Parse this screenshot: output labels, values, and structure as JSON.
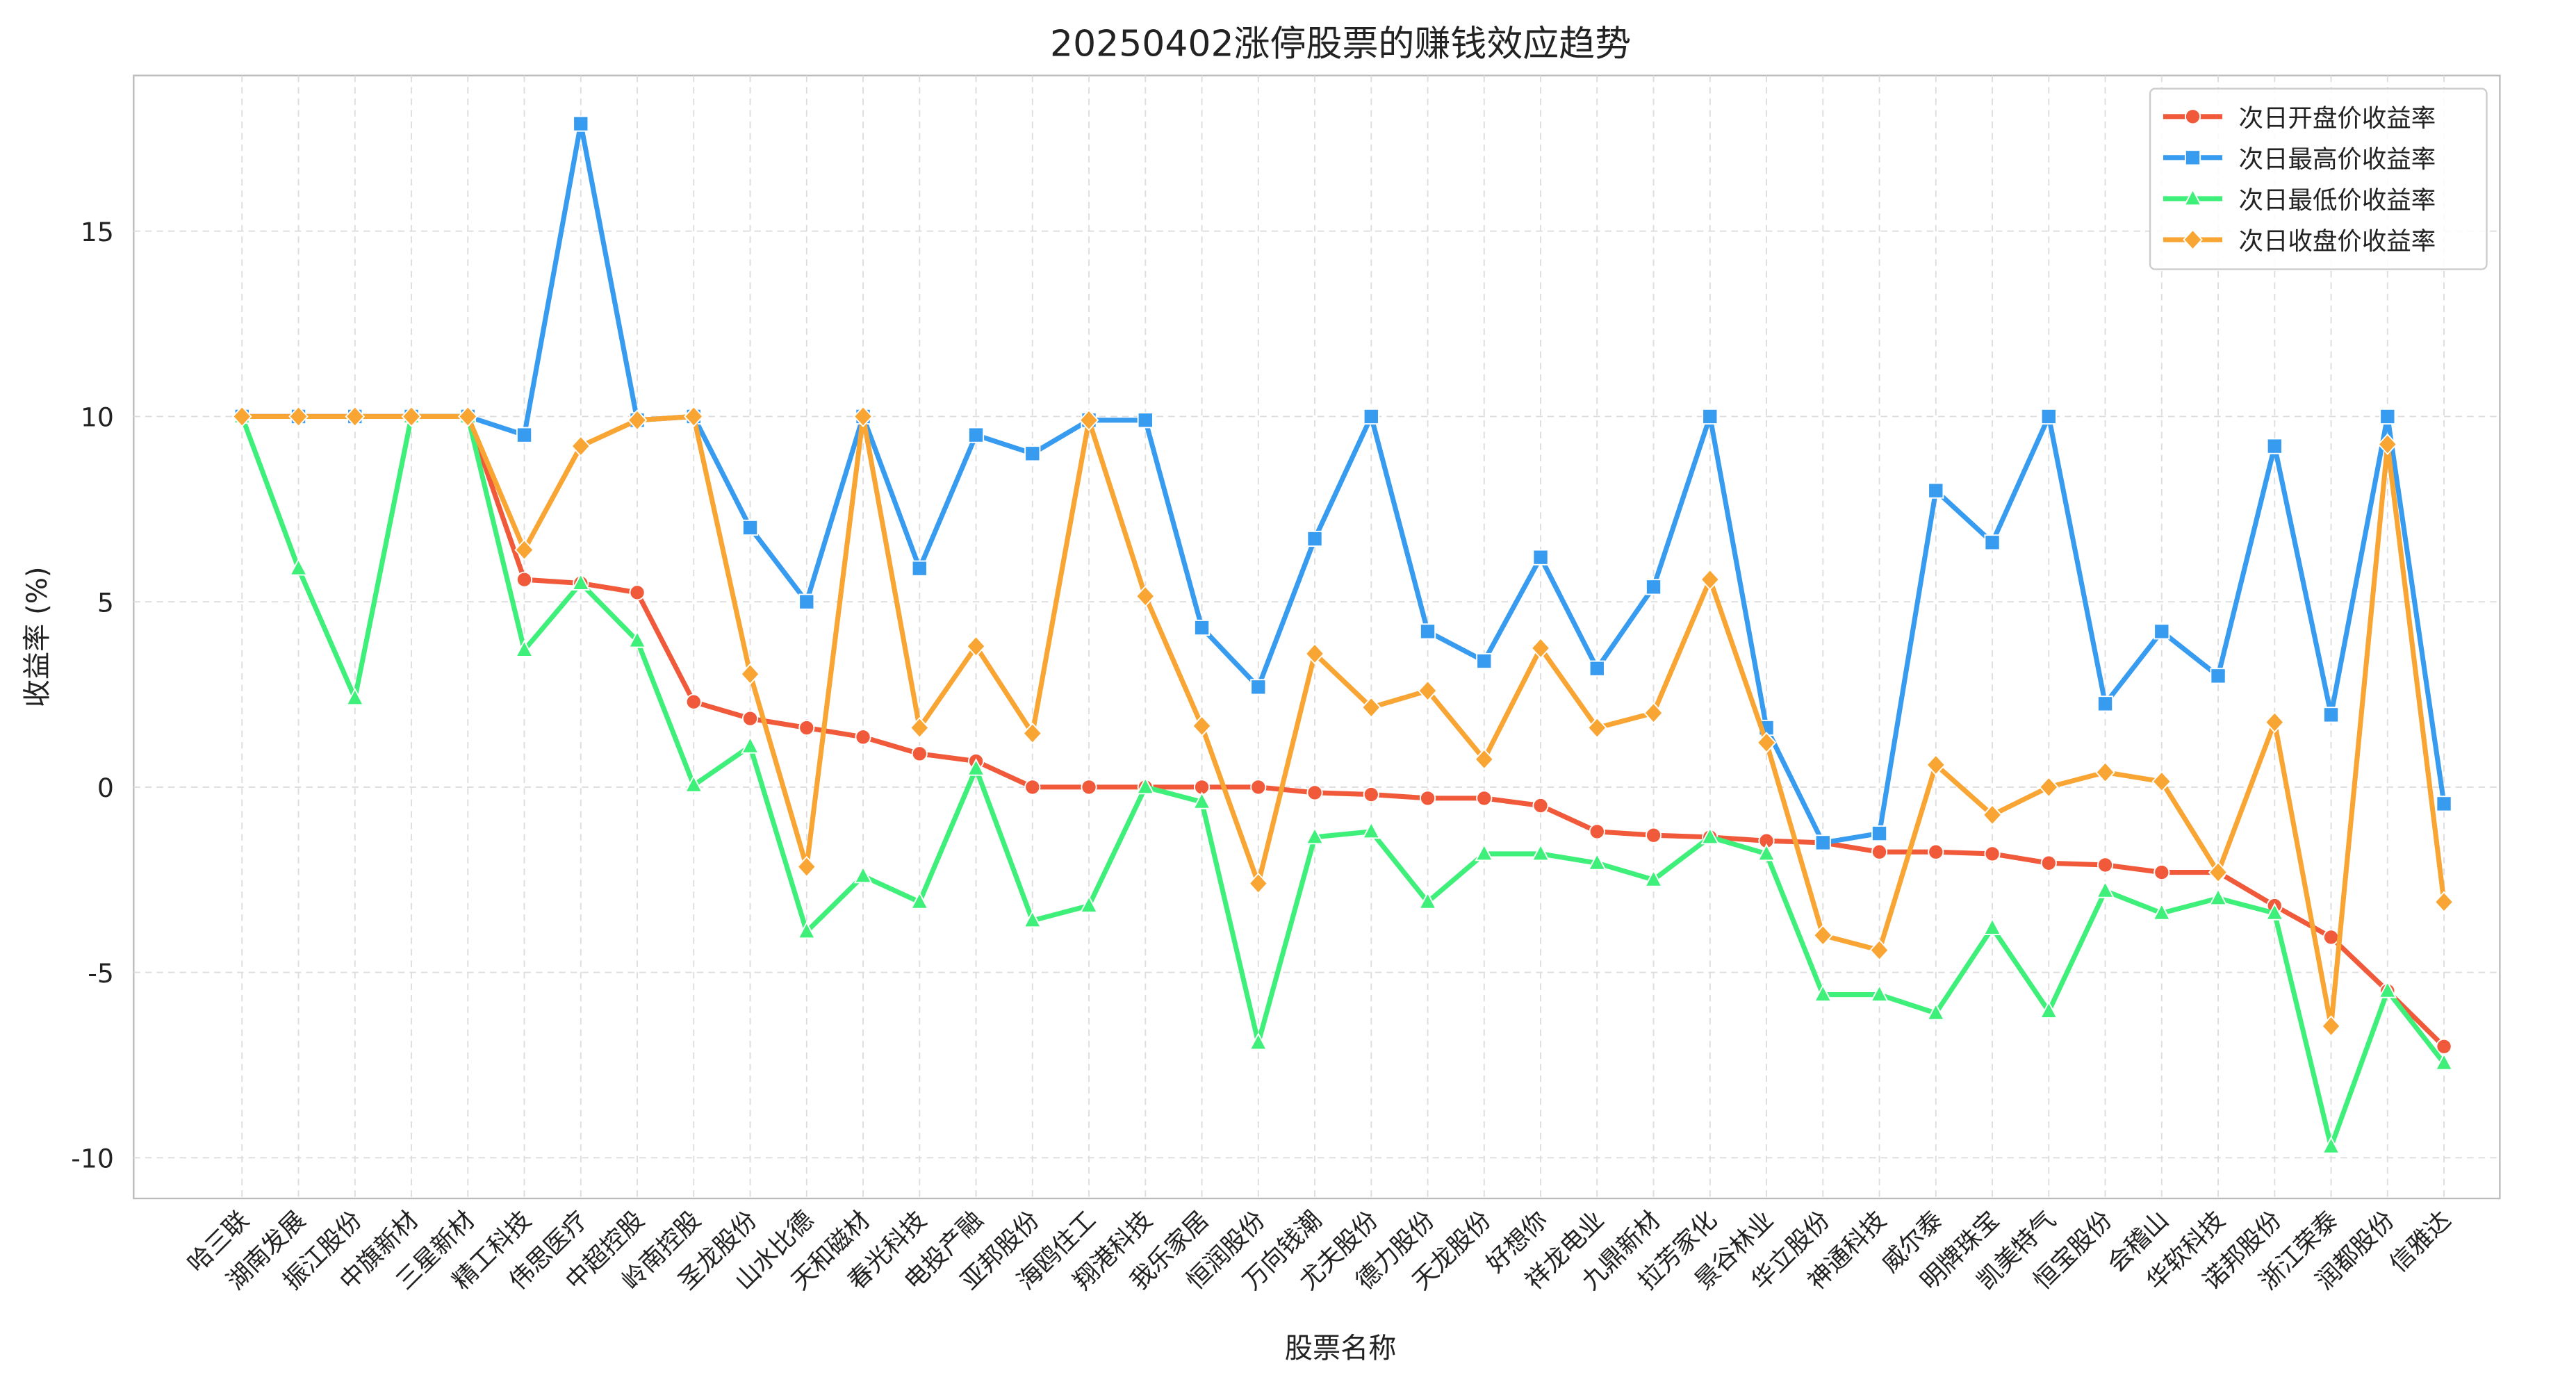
{
  "chart_data": {
    "type": "line",
    "title": "20250402涨停股票的赚钱效应趋势",
    "x_label": "股票名称",
    "y_label": "收益率 (%)",
    "categories": [
      "哈三联",
      "湖南发展",
      "振江股份",
      "中旗新材",
      "三星新材",
      "精工科技",
      "伟思医疗",
      "中超控股",
      "岭南控股",
      "圣龙股份",
      "山水比德",
      "天和磁材",
      "春光科技",
      "电投产融",
      "亚邦股份",
      "海鸥住工",
      "翔港科技",
      "我乐家居",
      "恒润股份",
      "万向钱潮",
      "尤夫股份",
      "德力股份",
      "天龙股份",
      "好想你",
      "祥龙电业",
      "九鼎新材",
      "拉芳家化",
      "景谷林业",
      "华立股份",
      "神通科技",
      "威尔泰",
      "明牌珠宝",
      "凯美特气",
      "恒宝股份",
      "会稽山",
      "华软科技",
      "诺邦股份",
      "浙江荣泰",
      "润都股份",
      "信雅达"
    ],
    "series": [
      {
        "name": "次日开盘价收益率",
        "color": "#f05a3a",
        "marker": "circle",
        "values": [
          10,
          10,
          10,
          10,
          10,
          5.6,
          5.5,
          5.25,
          2.3,
          1.85,
          1.6,
          1.35,
          0.9,
          0.7,
          0,
          0,
          0,
          0,
          0,
          -0.15,
          -0.2,
          -0.3,
          -0.3,
          -0.5,
          -1.2,
          -1.3,
          -1.35,
          -1.45,
          -1.5,
          -1.75,
          -1.75,
          -1.8,
          -2.05,
          -2.1,
          -2.3,
          -2.3,
          -3.2,
          -4.05,
          -5.5,
          -7.0
        ]
      },
      {
        "name": "次日最高价收益率",
        "color": "#379cf0",
        "marker": "square",
        "values": [
          10,
          10,
          10,
          10,
          10,
          9.5,
          17.9,
          9.9,
          10,
          7.0,
          5.0,
          10,
          5.9,
          9.5,
          9.0,
          9.9,
          9.9,
          4.3,
          2.7,
          6.7,
          10,
          4.2,
          3.4,
          6.2,
          3.2,
          5.4,
          10,
          1.6,
          -1.5,
          -1.25,
          8.0,
          6.6,
          10,
          2.25,
          4.2,
          3.0,
          9.2,
          1.95,
          10,
          -0.45
        ]
      },
      {
        "name": "次日最低价收益率",
        "color": "#3ef07a",
        "marker": "triangle",
        "values": [
          10,
          5.9,
          2.4,
          10,
          10,
          3.7,
          5.5,
          3.95,
          0.05,
          1.1,
          -3.9,
          -2.4,
          -3.1,
          0.5,
          -3.6,
          -3.2,
          0,
          -0.4,
          -6.9,
          -1.35,
          -1.2,
          -3.1,
          -1.8,
          -1.8,
          -2.05,
          -2.5,
          -1.35,
          -1.8,
          -5.6,
          -5.6,
          -6.1,
          -3.8,
          -6.05,
          -2.8,
          -3.4,
          -3.0,
          -3.4,
          -9.7,
          -5.5,
          -7.45
        ]
      },
      {
        "name": "次日收盘价收益率",
        "color": "#f8a534",
        "marker": "diamond",
        "values": [
          10,
          10,
          10,
          10,
          10,
          6.4,
          9.2,
          9.9,
          10,
          3.05,
          -2.15,
          10,
          1.6,
          3.8,
          1.45,
          9.9,
          5.15,
          1.65,
          -2.6,
          3.6,
          2.15,
          2.6,
          0.75,
          3.75,
          1.6,
          2.0,
          5.6,
          1.2,
          -4.0,
          -4.4,
          0.6,
          -0.75,
          0,
          0.4,
          0.15,
          -2.3,
          1.75,
          -6.45,
          9.25,
          -3.1
        ]
      }
    ],
    "ylim": [
      -11.1,
      19.2
    ],
    "yticks": [
      -10,
      -5,
      0,
      5,
      10,
      15
    ],
    "grid": true,
    "legend": "upper right"
  }
}
